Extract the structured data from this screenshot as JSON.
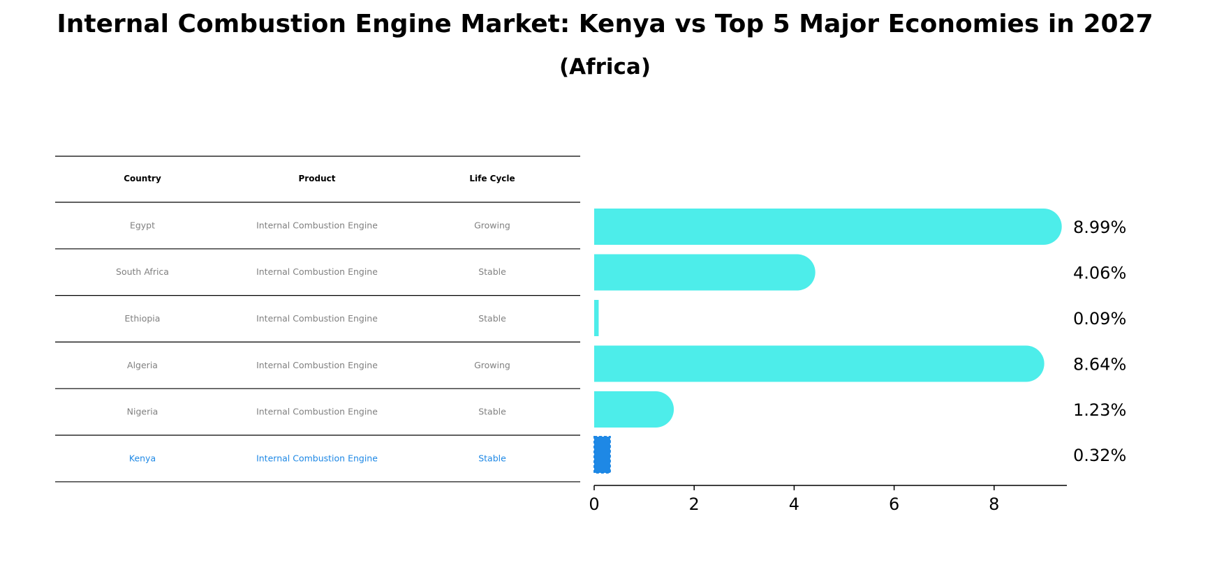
{
  "title": "Internal Combustion Engine Market: Kenya vs Top 5 Major Economies in 2027",
  "subtitle": "(Africa)",
  "table": {
    "headers": [
      "Country",
      "Product",
      "Life Cycle"
    ],
    "rows": [
      [
        "Egypt",
        "Internal Combustion Engine",
        "Growing"
      ],
      [
        "South Africa",
        "Internal Combustion Engine",
        "Stable"
      ],
      [
        "Ethiopia",
        "Internal Combustion Engine",
        "Stable"
      ],
      [
        "Algeria",
        "Internal Combustion Engine",
        "Growing"
      ],
      [
        "Nigeria",
        "Internal Combustion Engine",
        "Stable"
      ],
      [
        "Kenya",
        "Internal Combustion Engine",
        "Stable"
      ]
    ],
    "highlight_country": "Kenya"
  },
  "chart_data": {
    "type": "bar",
    "orientation": "horizontal",
    "categories": [
      "Egypt",
      "South Africa",
      "Ethiopia",
      "Algeria",
      "Nigeria",
      "Kenya"
    ],
    "values": [
      8.99,
      4.06,
      0.09,
      8.64,
      1.23,
      0.32
    ],
    "value_labels": [
      "8.99%",
      "4.06%",
      "0.09%",
      "8.64%",
      "1.23%",
      "0.32%"
    ],
    "xticks": [
      0,
      2,
      4,
      6,
      8
    ],
    "xlim": [
      0,
      9.5
    ],
    "colors": {
      "bar": "#4DEDEA",
      "highlight": "#1E88E5",
      "text": "#000000",
      "muted_text": "#808080"
    }
  }
}
